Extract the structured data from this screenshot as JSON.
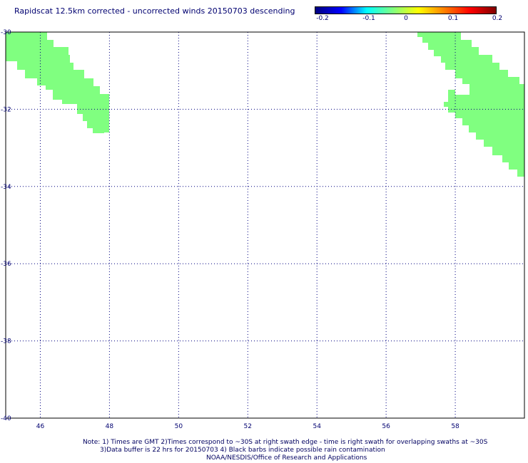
{
  "title": "Rapidscat 12.5km corrected - uncorrected winds 20150703 descending",
  "colorbar": {
    "labels": [
      "-0.2",
      "-0.1",
      "0",
      "0.1",
      "0.2"
    ],
    "stops": [
      "#000080",
      "#0000ff",
      "#00ffff",
      "#80ff80",
      "#ffff00",
      "#ff8000",
      "#ff0000",
      "#800000"
    ]
  },
  "map": {
    "lon_range": [
      45,
      60
    ],
    "lat_range": [
      -40,
      -30
    ],
    "xticks": [
      "46",
      "48",
      "50",
      "52",
      "54",
      "56",
      "58"
    ],
    "yticks": [
      "-30",
      "-32",
      "-34",
      "-36",
      "-38",
      "-40"
    ],
    "swath_color": "#80ff80",
    "grid_color": "#000080"
  },
  "notes": {
    "line1": "Note: 1) Times are GMT 2)Times correspond to ~30S at right swath edge - time is right swath for overlapping swaths at ~30S",
    "line2": "3)Data buffer is 22 hrs for 20150703 4) Black barbs indicate possible rain contamination",
    "line3": "NOAA/NESDIS/Office of Research and Applications"
  }
}
